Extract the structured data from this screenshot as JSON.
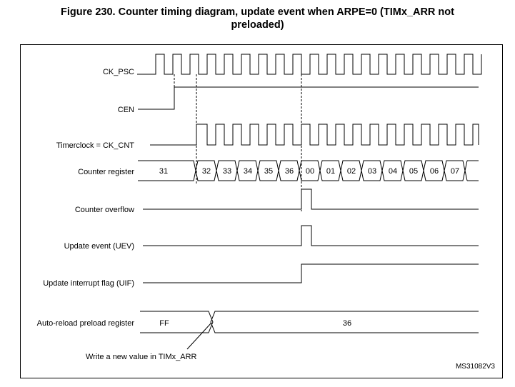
{
  "figure": {
    "title_line1": "Figure 230. Counter timing diagram, update event when ARPE=0 (TIMx_ARR not",
    "title_line2": "preloaded)",
    "reference": "MS31082V3"
  },
  "signals": {
    "ck_psc": "CK_PSC",
    "cen": "CEN",
    "timer_clock": "Timerclock = CK_CNT",
    "counter_register": "Counter register",
    "counter_overflow": "Counter overflow",
    "update_event": "Update event (UEV)",
    "update_interrupt_flag": "Update interrupt flag (UIF)",
    "auto_reload": "Auto-reload preload register"
  },
  "counter_values": [
    "31",
    "32",
    "33",
    "34",
    "35",
    "36",
    "00",
    "01",
    "02",
    "03",
    "04",
    "05",
    "06",
    "07"
  ],
  "auto_reload_values": [
    "FF",
    "36"
  ],
  "annotation": "Write a new value in TIMx_ARR"
}
